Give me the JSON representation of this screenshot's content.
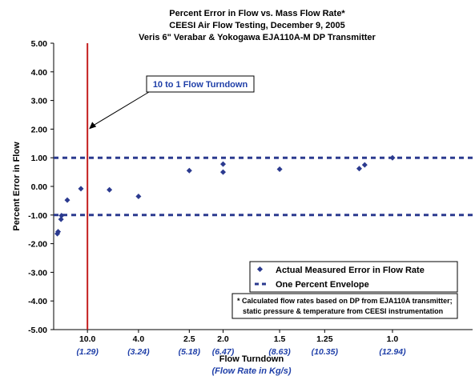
{
  "chart_data": {
    "type": "scatter",
    "title_lines": [
      "Percent Error in Flow vs. Mass Flow Rate*",
      "CEESI Air Flow Testing, December 9, 2005",
      "Veris 6\" Verabar & Yokogawa EJA110A-M DP Transmitter"
    ],
    "ylabel": "Percent Error in Flow",
    "xlabel": "Flow Turndown",
    "xlabel_sub": "(Flow Rate in Kg/s)",
    "ylim": [
      -5,
      5
    ],
    "xlim": [
      0,
      16
    ],
    "yticks": [
      "5.00",
      "4.00",
      "3.00",
      "2.00",
      "1.00",
      "0.00",
      "-1.00",
      "-2.00",
      "-3.00",
      "-4.00",
      "-5.00"
    ],
    "xticks": [
      {
        "label": "10.0",
        "sub": "(1.29)",
        "x": 1.29
      },
      {
        "label": "4.0",
        "sub": "(3.24)",
        "x": 3.24
      },
      {
        "label": "2.5",
        "sub": "(5.18)",
        "x": 5.18
      },
      {
        "label": "2.0",
        "sub": "(6.47)",
        "x": 6.47
      },
      {
        "label": "1.5",
        "sub": "(8.63)",
        "x": 8.63
      },
      {
        "label": "1.25",
        "sub": "(10.35)",
        "x": 10.35
      },
      {
        "label": "1.0",
        "sub": "(12.94)",
        "x": 12.94
      }
    ],
    "series": [
      {
        "name": "Actual Measured Error in Flow Rate",
        "points": [
          {
            "x": 0.14,
            "y": -1.65
          },
          {
            "x": 0.17,
            "y": -1.58
          },
          {
            "x": 0.28,
            "y": -1.15
          },
          {
            "x": 0.3,
            "y": -1.02
          },
          {
            "x": 0.52,
            "y": -0.48
          },
          {
            "x": 1.04,
            "y": -0.08
          },
          {
            "x": 2.13,
            "y": -0.12
          },
          {
            "x": 3.24,
            "y": -0.35
          },
          {
            "x": 5.18,
            "y": 0.55
          },
          {
            "x": 6.47,
            "y": 0.78
          },
          {
            "x": 6.47,
            "y": 0.5
          },
          {
            "x": 8.63,
            "y": 0.6
          },
          {
            "x": 11.67,
            "y": 0.62
          },
          {
            "x": 11.88,
            "y": 0.75
          },
          {
            "x": 12.94,
            "y": 1.0
          }
        ],
        "color": "#2b3a8f"
      },
      {
        "name": "One Percent Envelope",
        "values": [
          1.0,
          -1.0
        ],
        "color": "#2b3a8f"
      }
    ],
    "vline": {
      "x": 1.29,
      "color": "#c41e1e"
    },
    "annotation": {
      "text": "10 to 1 Flow Turndown",
      "target": {
        "x": 1.29,
        "y": 2.0
      }
    },
    "note_lines": [
      "* Calculated flow rates based on DP from EJA110A transmitter;",
      "static pressure & temperature from CEESI instrumentation"
    ],
    "legend_position": "bottom-right",
    "grid": false
  }
}
